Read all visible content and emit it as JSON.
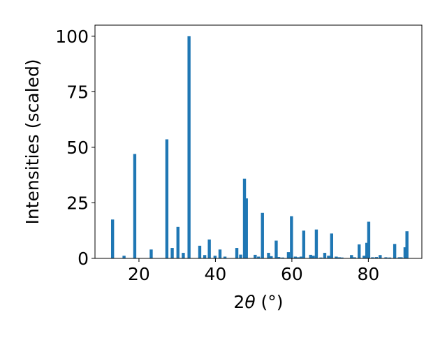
{
  "chart_data": {
    "type": "bar",
    "title": "",
    "xlabel_parts": {
      "prefix": "2",
      "symbol": "θ",
      "unit": " (°)"
    },
    "ylabel": "Intensities (scaled)",
    "xlim": [
      8.5,
      94.0
    ],
    "ylim": [
      0,
      105
    ],
    "xticks": [
      20,
      40,
      60,
      80
    ],
    "yticks": [
      0,
      25,
      50,
      75,
      100
    ],
    "grid": false,
    "legend": "none",
    "bar_color": "#1f77b4",
    "bar_width": 0.8,
    "x": [
      13.1,
      16.1,
      18.9,
      23.2,
      27.3,
      28.7,
      30.2,
      31.6,
      33.1,
      35.9,
      37.2,
      38.4,
      39.9,
      41.2,
      42.5,
      45.6,
      46.6,
      47.6,
      48.1,
      50.4,
      51.3,
      52.3,
      53.9,
      54.6,
      55.9,
      56.6,
      57.6,
      59.1,
      59.9,
      60.9,
      61.6,
      62.4,
      63.1,
      64.9,
      65.6,
      66.4,
      67.6,
      68.6,
      69.6,
      70.4,
      71.6,
      72.4,
      73.1,
      75.6,
      76.4,
      77.6,
      78.9,
      79.6,
      80.1,
      81.1,
      82.1,
      83.1,
      84.6,
      85.6,
      86.9,
      88.1,
      88.6,
      89.6,
      90.1
    ],
    "y": [
      17.5,
      1.2,
      47,
      4,
      53.6,
      4.7,
      14.2,
      2.5,
      100,
      5.7,
      1.5,
      8.5,
      1.2,
      4,
      0.8,
      4.7,
      1.7,
      35.9,
      27,
      1.6,
      0.8,
      20.5,
      2.5,
      1,
      8,
      0.6,
      0.4,
      2.8,
      19,
      0.8,
      0.5,
      0.8,
      12.5,
      1.6,
      1.2,
      13,
      0.4,
      2.5,
      1.2,
      11.2,
      0.8,
      0.5,
      0.4,
      1.5,
      0.5,
      6.3,
      1.2,
      7,
      16.5,
      0.5,
      0.6,
      1.5,
      0.5,
      0.4,
      6.5,
      0.5,
      0.5,
      5,
      12.2
    ]
  }
}
